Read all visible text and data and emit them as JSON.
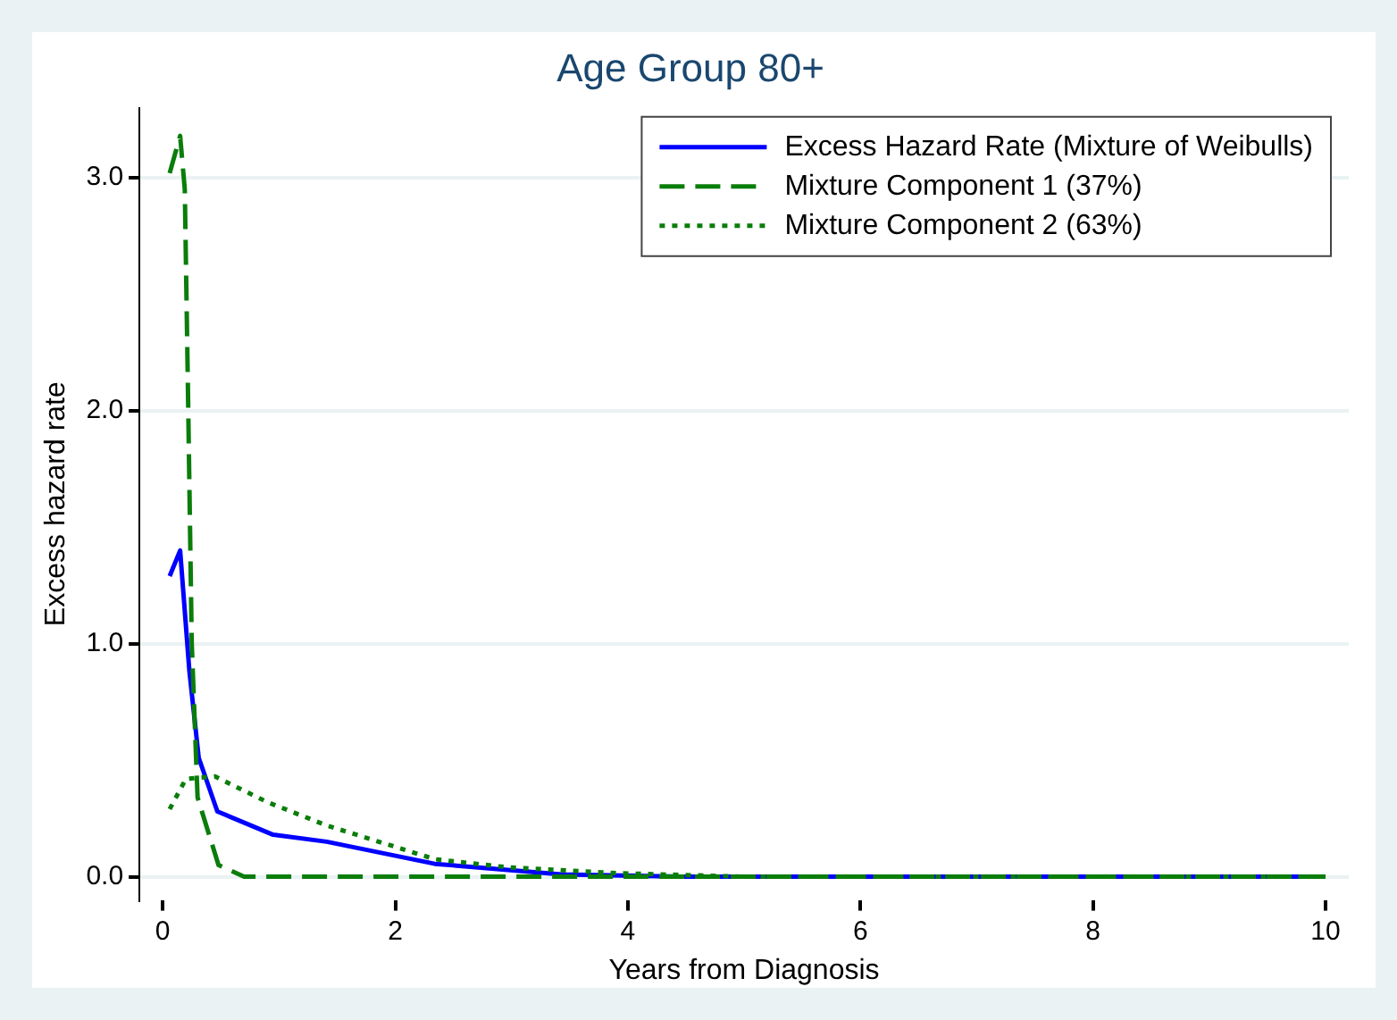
{
  "chart_data": {
    "type": "line",
    "title": "Age Group 80+",
    "xlabel": "Years from Diagnosis",
    "ylabel": "Excess hazard rate",
    "xlim": [
      -0.2,
      10.2
    ],
    "xticks": [
      0,
      2,
      4,
      6,
      8,
      10
    ],
    "ylim": [
      -0.1,
      3.3
    ],
    "yticks": [
      {
        "value": 0,
        "label": "0.0"
      },
      {
        "value": 1,
        "label": "1.0"
      },
      {
        "value": 2,
        "label": "2.0"
      },
      {
        "value": 3,
        "label": "3.0"
      }
    ],
    "grid": "y",
    "legend": "top right",
    "marker": "none",
    "series": [
      {
        "name": "Excess Hazard Rate (Mixture of Weibulls)",
        "color": "#0000ff",
        "line_style": "solid",
        "x": [
          0.06,
          0.15,
          0.23,
          0.31,
          0.47,
          0.95,
          1.41,
          2.34,
          3.43,
          4.5,
          6,
          8,
          10
        ],
        "values": [
          1.29,
          1.4,
          0.88,
          0.51,
          0.28,
          0.18,
          0.15,
          0.055,
          0.01,
          0,
          0,
          0,
          0
        ]
      },
      {
        "name": "Mixture Component 1 (37%)",
        "color": "#0a7d0a",
        "line_style": "dashed",
        "x": [
          0.06,
          0.15,
          0.19,
          0.22,
          0.25,
          0.3,
          0.48,
          0.7,
          2,
          4,
          6,
          8,
          10
        ],
        "values": [
          3.02,
          3.18,
          2.95,
          2.0,
          1.0,
          0.34,
          0.05,
          0,
          0,
          0,
          0,
          0,
          0
        ]
      },
      {
        "name": "Mixture Component 2 (63%)",
        "color": "#0a7d0a",
        "line_style": "dotted",
        "x": [
          0.06,
          0.2,
          0.45,
          0.9,
          1.41,
          2.34,
          2.97,
          3.9,
          5,
          6,
          8,
          10
        ],
        "values": [
          0.29,
          0.42,
          0.43,
          0.32,
          0.22,
          0.075,
          0.04,
          0.015,
          0,
          0,
          0,
          0
        ]
      }
    ]
  }
}
